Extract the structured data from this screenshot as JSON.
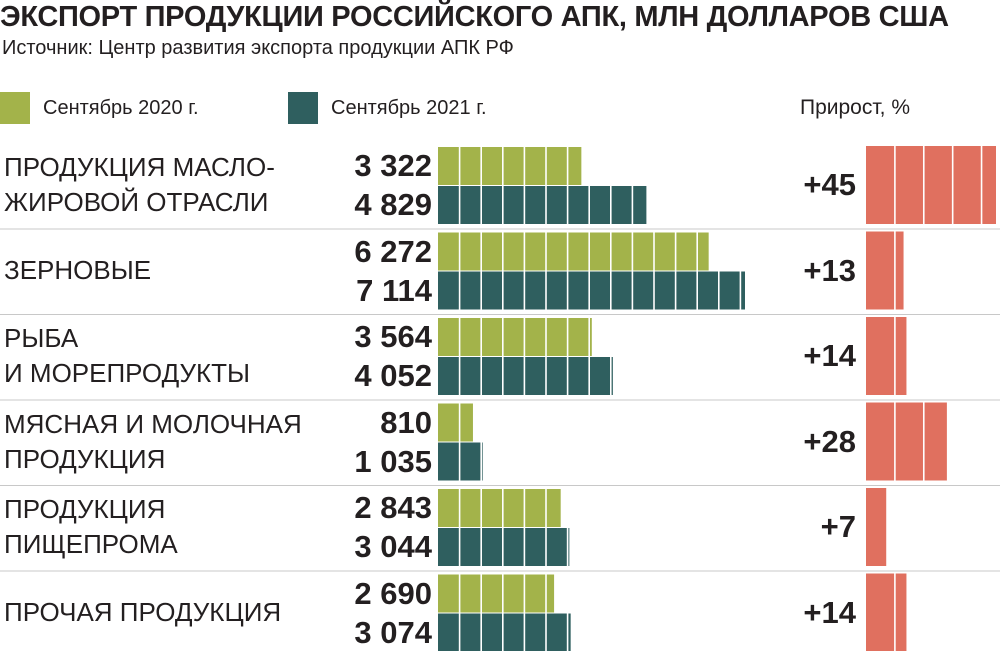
{
  "title": "ЭКСПОРТ ПРОДУКЦИИ РОССИЙСКОГО АПК, МЛН ДОЛЛАРОВ США",
  "subtitle": "Источник: Центр развития экспорта продукции АПК РФ",
  "legend": [
    {
      "label": "Сентябрь 2020 г.",
      "color": "#a3b34a"
    },
    {
      "label": "Сентябрь 2021 г.",
      "color": "#2f5f5f"
    }
  ],
  "growth_header": "Прирост, %",
  "colors": {
    "series_2020": "#a3b34a",
    "series_2021": "#2f5f5f",
    "growth": "#e0705f",
    "separator": "#c8c8c8",
    "text": "#231f20"
  },
  "chart_data": {
    "type": "bar",
    "orientation": "horizontal",
    "title": "ЭКСПОРТ ПРОДУКЦИИ РОССИЙСКОГО АПК, МЛН ДОЛЛАРОВ США",
    "categories": [
      "ПРОДУКЦИЯ МАСЛО-\nЖИРОВОЙ ОТРАСЛИ",
      "ЗЕРНОВЫЕ",
      "РЫБА\nИ МОРЕПРОДУКТЫ",
      "МЯСНАЯ И МОЛОЧНАЯ\nПРОДУКЦИЯ",
      "ПРОДУКЦИЯ\nПИЩЕПРОМА",
      "ПРОЧАЯ ПРОДУКЦИЯ"
    ],
    "series": [
      {
        "name": "Сентябрь 2020 г.",
        "values": [
          3322,
          6272,
          3564,
          810,
          2843,
          2690
        ],
        "labels": [
          "3 322",
          "6 272",
          "3 564",
          "810",
          "2 843",
          "2 690"
        ]
      },
      {
        "name": "Сентябрь 2021 г.",
        "values": [
          4829,
          7114,
          4052,
          1035,
          3044,
          3074
        ],
        "labels": [
          "4 829",
          "7 114",
          "4 052",
          "1 035",
          "3 044",
          "3 074"
        ]
      }
    ],
    "growth": {
      "name": "Прирост, %",
      "values": [
        45,
        13,
        14,
        28,
        7,
        14
      ],
      "labels": [
        "+45",
        "+13",
        "+14",
        "+28",
        "+7",
        "+14"
      ]
    },
    "xlim": [
      0,
      7200
    ],
    "grid": false,
    "legend": "top-left"
  }
}
